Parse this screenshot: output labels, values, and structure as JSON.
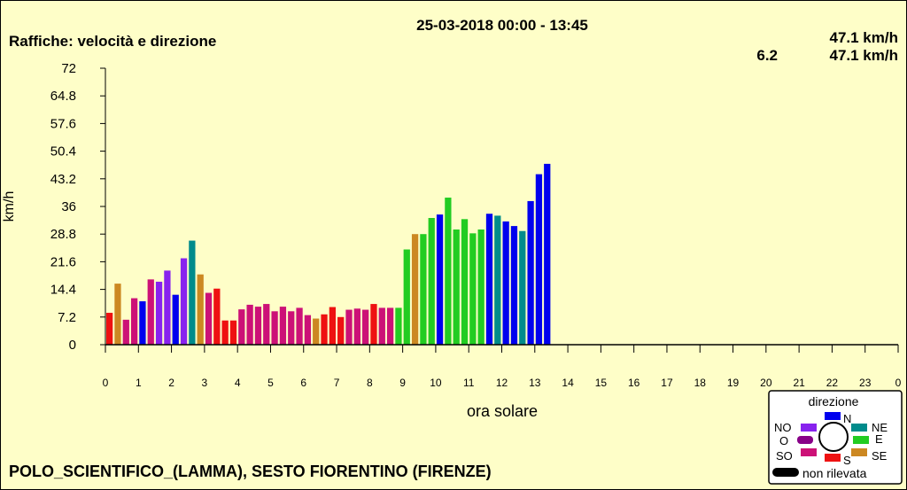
{
  "header": {
    "date_range": "25-03-2018 00:00 - 13:45",
    "title": "Raffiche: velocità e direzione",
    "value_line1": "47.1 km/h",
    "value_line2_a": "6.2",
    "value_line2_b": "47.1 km/h"
  },
  "station": "POLO_SCIENTIFICO_(LAMMA), SESTO FIORENTINO (FIRENZE)",
  "legend": {
    "title": "direzione",
    "N": "N",
    "NE": "NE",
    "E": "E",
    "SE": "SE",
    "S": "S",
    "SO": "SO",
    "O": "O",
    "NO": "NO",
    "missing": "non rilevata"
  },
  "direction_colors": {
    "N": "#0000ee",
    "NE": "#008b8b",
    "E": "#22cc22",
    "SE": "#cc8822",
    "S": "#ee1111",
    "SO": "#cc1177",
    "O": "#880088",
    "NO": "#8822ee",
    "missing": "#000000"
  },
  "chart_data": {
    "type": "bar",
    "xlabel": "ora solare",
    "ylabel": "km/h",
    "ylim": [
      0,
      72
    ],
    "xlim": [
      0,
      24
    ],
    "y_ticks": [
      "0",
      "7.2",
      "14.4",
      "21.6",
      "28.8",
      "36",
      "43.2",
      "50.4",
      "57.6",
      "64.8",
      "72"
    ],
    "x_ticks": [
      "0",
      "1",
      "2",
      "3",
      "4",
      "5",
      "6",
      "7",
      "8",
      "9",
      "10",
      "11",
      "12",
      "13",
      "14",
      "15",
      "16",
      "17",
      "18",
      "19",
      "20",
      "21",
      "22",
      "23",
      "0"
    ],
    "bar_interval_hours": 0.25,
    "series": [
      {
        "values": [
          8.3,
          15.9,
          6.5,
          12.1,
          11.3,
          17.0,
          16.4,
          19.3,
          13.0,
          22.5,
          27.1,
          18.3,
          13.5,
          14.6,
          6.3,
          6.3,
          9.2,
          10.4,
          9.9,
          10.6,
          8.7,
          9.9,
          8.7,
          9.6,
          7.7,
          6.8,
          7.9,
          9.8,
          7.2,
          9.1,
          9.4,
          9.1,
          10.6,
          9.6,
          9.6,
          9.6,
          24.8,
          28.8,
          28.8,
          33.0,
          33.9,
          38.3,
          30.0,
          32.7,
          29.0,
          30.0,
          34.1,
          33.6,
          32.1,
          30.9,
          29.6,
          37.4,
          44.4,
          47.1
        ],
        "directions": [
          "S",
          "SE",
          "SO",
          "SO",
          "N",
          "SO",
          "NO",
          "NO",
          "N",
          "NO",
          "NE",
          "SE",
          "SO",
          "S",
          "S",
          "S",
          "SO",
          "SO",
          "SO",
          "SO",
          "SO",
          "SO",
          "SO",
          "SO",
          "SO",
          "SE",
          "S",
          "S",
          "S",
          "SO",
          "SO",
          "SO",
          "S",
          "SO",
          "SO",
          "E",
          "E",
          "SE",
          "E",
          "E",
          "N",
          "E",
          "E",
          "E",
          "E",
          "E",
          "N",
          "NE",
          "N",
          "N",
          "NE",
          "N",
          "N",
          "N"
        ]
      }
    ]
  }
}
